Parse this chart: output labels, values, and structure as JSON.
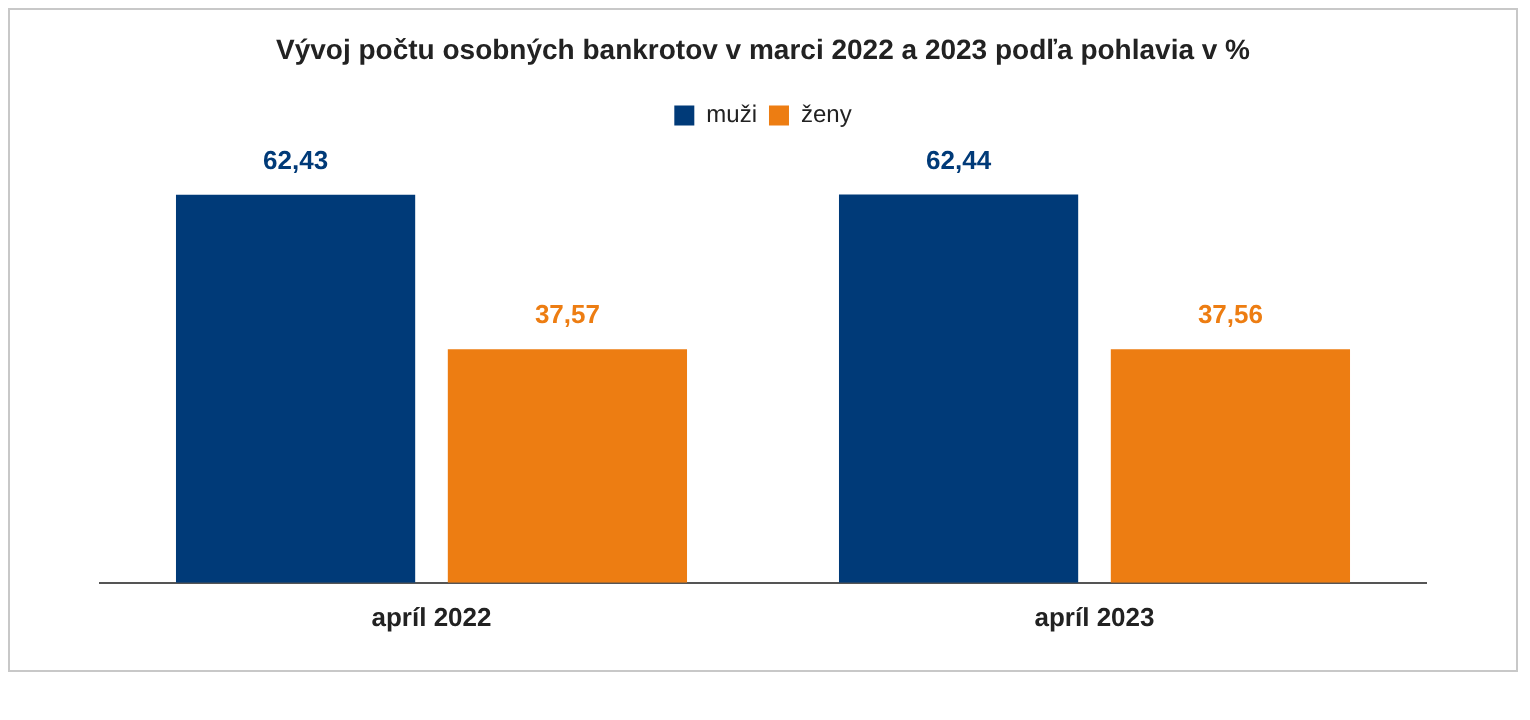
{
  "chart_data": {
    "type": "bar",
    "title": "Vývoj počtu osobných bankrotov v marci 2022 a 2023 podľa pohlavia v %",
    "categories": [
      "apríl 2022",
      "apríl 2023"
    ],
    "series": [
      {
        "name": "muži",
        "color": "#003a78",
        "values": [
          62.43,
          62.44
        ],
        "value_labels": [
          "62,43",
          "62,44"
        ]
      },
      {
        "name": "ženy",
        "color": "#ed7d12",
        "values": [
          37.57,
          37.56
        ],
        "value_labels": [
          "37,57",
          "37,56"
        ]
      }
    ],
    "tick_labels": "x",
    "grid": false,
    "legend": "top"
  }
}
